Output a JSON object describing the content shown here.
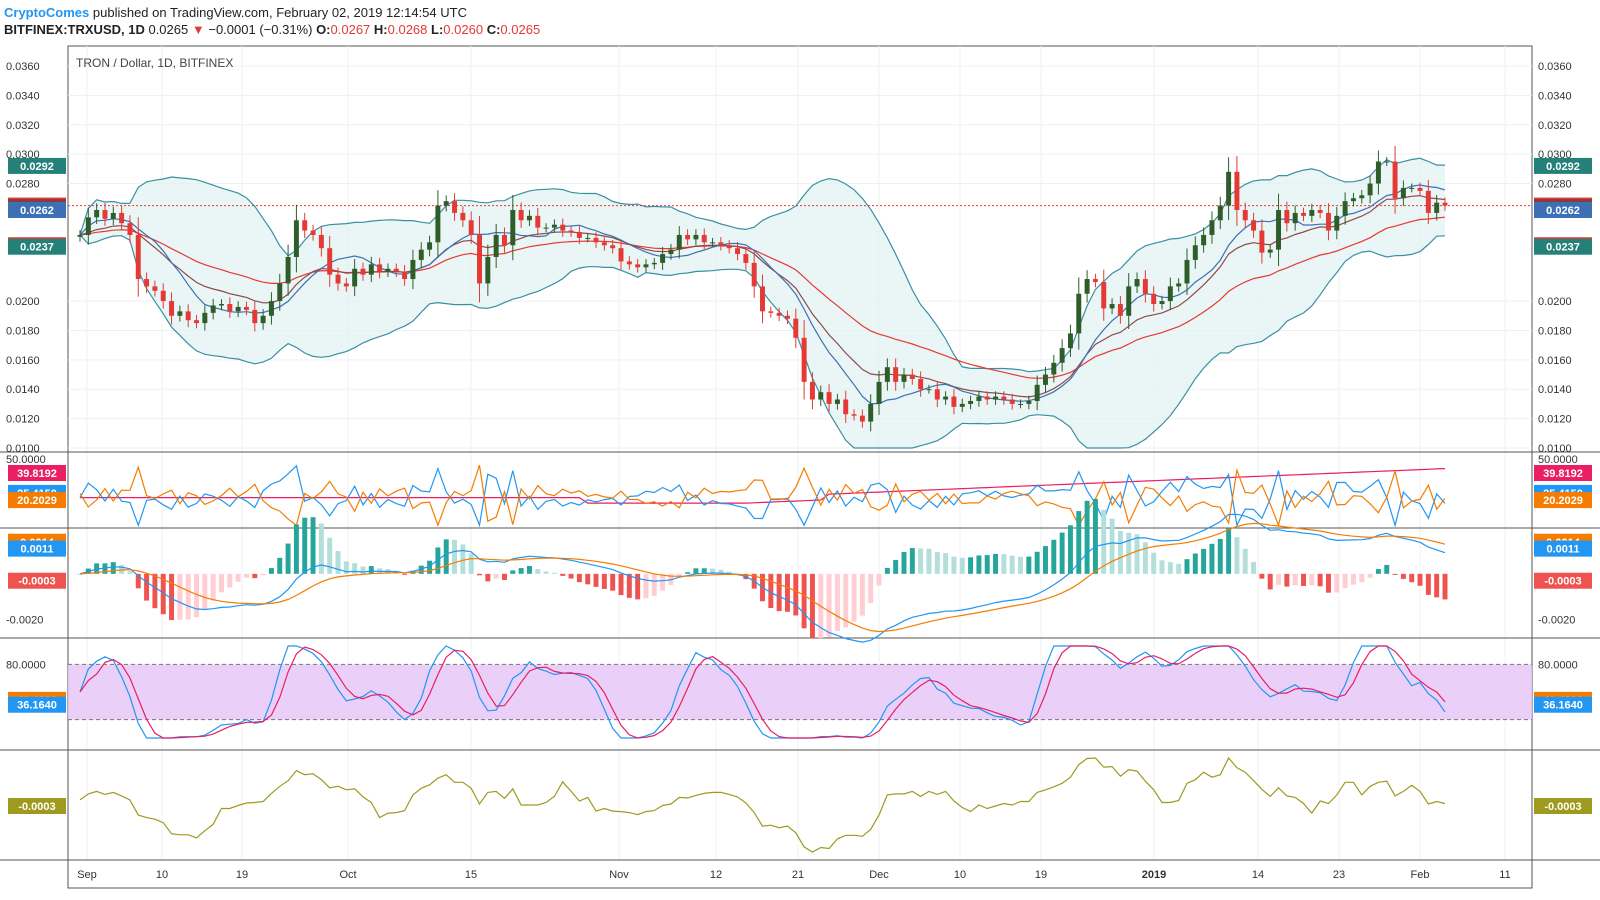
{
  "header": {
    "brand": "CryptoComes",
    "published": "published on TradingView.com, February 02, 2019 12:14:54 UTC",
    "symbol": "BITFINEX:TRXUSD, 1D",
    "last": "0.0265",
    "arrow": "▼",
    "change": "−0.0001 (−0.31%)",
    "o_label": "O:",
    "o_val": "0.0267",
    "h_label": "H:",
    "h_val": "0.0268",
    "l_label": "L:",
    "l_val": "0.0260",
    "c_label": "C:",
    "c_val": "0.0265"
  },
  "colors": {
    "up": "#2e5d2a",
    "down": "#e53935",
    "bb_line": "#3a8fa3",
    "bb_fill": "#e0f2f1",
    "ma_red": "#e53935",
    "ma_brown": "#8d4a4a",
    "ma_blue": "#3d6fb5",
    "dmi_pink": "#e91e63",
    "dmi_blue": "#2196f3",
    "dmi_orange": "#f57c00",
    "macd_blue": "#2196f3",
    "macd_orange": "#f57c00",
    "stoch_fill": "#e6c8f7",
    "osc_olive": "#9e9a1e"
  },
  "chart_data": [
    {
      "type": "candlestick",
      "title": "TRON / Dollar, 1D, BITFINEX",
      "y_ticks": [
        "0.0360",
        "0.0340",
        "0.0320",
        "0.0300",
        "0.0280",
        "0.0200",
        "0.0180",
        "0.0160",
        "0.0140",
        "0.0120",
        "0.0100"
      ],
      "ylim": [
        0.01,
        0.036
      ],
      "x_ticks": [
        "Sep",
        "10",
        "19",
        "Oct",
        "15",
        "Nov",
        "12",
        "21",
        "Dec",
        "10",
        "19",
        "2019",
        "14",
        "23",
        "Feb",
        "11"
      ],
      "current_line": 0.0265,
      "badges": [
        {
          "label": "0.0292",
          "value": 0.0292,
          "color": "#26807a"
        },
        {
          "label": "0.0265",
          "value": 0.0265,
          "color": "#e53935"
        },
        {
          "label": "0.0264",
          "value": 0.0264,
          "color": "#8d3a3a"
        },
        {
          "label": "0.0262",
          "value": 0.0262,
          "color": "#3d6fb5"
        },
        {
          "label": "0.0238",
          "value": 0.0238,
          "color": "#e53935"
        },
        {
          "label": "0.0237",
          "value": 0.0237,
          "color": "#26807a"
        }
      ],
      "closes": [
        0.0245,
        0.0257,
        0.0262,
        0.0256,
        0.026,
        0.0253,
        0.0245,
        0.0215,
        0.021,
        0.0207,
        0.02,
        0.019,
        0.0193,
        0.0187,
        0.0185,
        0.0192,
        0.0197,
        0.0198,
        0.0193,
        0.0196,
        0.0194,
        0.0185,
        0.019,
        0.02,
        0.0212,
        0.023,
        0.0255,
        0.0248,
        0.0245,
        0.0236,
        0.0218,
        0.0212,
        0.021,
        0.0222,
        0.0218,
        0.0225,
        0.022,
        0.0222,
        0.022,
        0.0215,
        0.0228,
        0.0235,
        0.024,
        0.0265,
        0.0268,
        0.026,
        0.0255,
        0.0245,
        0.0212,
        0.023,
        0.0245,
        0.0238,
        0.0262,
        0.0255,
        0.0258,
        0.025,
        0.025,
        0.0252,
        0.0248,
        0.0247,
        0.0243,
        0.0243,
        0.024,
        0.0238,
        0.0236,
        0.0227,
        0.0225,
        0.0223,
        0.0225,
        0.0226,
        0.0232,
        0.0235,
        0.0245,
        0.0242,
        0.0245,
        0.024,
        0.024,
        0.0238,
        0.0236,
        0.0232,
        0.0226,
        0.021,
        0.0193,
        0.0192,
        0.019,
        0.0188,
        0.0175,
        0.0145,
        0.0133,
        0.0138,
        0.013,
        0.0133,
        0.0123,
        0.0122,
        0.0118,
        0.013,
        0.0145,
        0.0155,
        0.0145,
        0.015,
        0.0147,
        0.014,
        0.014,
        0.0133,
        0.0135,
        0.0128,
        0.013,
        0.0132,
        0.0135,
        0.0133,
        0.0135,
        0.0133,
        0.013,
        0.013,
        0.0132,
        0.0143,
        0.015,
        0.0158,
        0.0168,
        0.0178,
        0.0205,
        0.0215,
        0.0213,
        0.0195,
        0.0198,
        0.019,
        0.021,
        0.0215,
        0.0205,
        0.0198,
        0.02,
        0.021,
        0.0212,
        0.0228,
        0.0238,
        0.0245,
        0.0255,
        0.0265,
        0.0288,
        0.0262,
        0.0255,
        0.0248,
        0.0233,
        0.0235,
        0.0262,
        0.0253,
        0.026,
        0.0258,
        0.0262,
        0.026,
        0.0248,
        0.0258,
        0.0268,
        0.027,
        0.0272,
        0.028,
        0.0295,
        0.0295,
        0.027,
        0.0277,
        0.0277,
        0.0275,
        0.026,
        0.0267,
        0.0265
      ]
    },
    {
      "type": "line",
      "name": "DMI",
      "y_ticks": [
        "50.0000"
      ],
      "badges": [
        {
          "label": "39.8192",
          "value": 39.8192,
          "color": "#e91e63"
        },
        {
          "label": "25.4150",
          "value": 25.415,
          "color": "#2196f3"
        },
        {
          "label": "20.2029",
          "value": 20.2029,
          "color": "#f57c00"
        }
      ]
    },
    {
      "type": "bar",
      "name": "MACD",
      "y_ticks": [
        "-0.0020"
      ],
      "badges": [
        {
          "label": "0.0014",
          "value": 0.0014,
          "color": "#f57c00"
        },
        {
          "label": "0.0011",
          "value": 0.0011,
          "color": "#2196f3"
        },
        {
          "label": "-0.0003",
          "value": -0.0003,
          "color": "#ef5350"
        }
      ]
    },
    {
      "type": "line",
      "name": "Stoch RSI",
      "y_ticks": [
        "80.0000"
      ],
      "badges": [
        {
          "label": "41.4332",
          "value": 41.4332,
          "color": "#f57c00"
        },
        {
          "label": "36.1640",
          "value": 36.164,
          "color": "#2196f3"
        }
      ]
    },
    {
      "type": "line",
      "name": "Oscillator",
      "badges": [
        {
          "label": "-0.0003",
          "value": -0.0003,
          "color": "#9e9a1e"
        }
      ]
    }
  ]
}
